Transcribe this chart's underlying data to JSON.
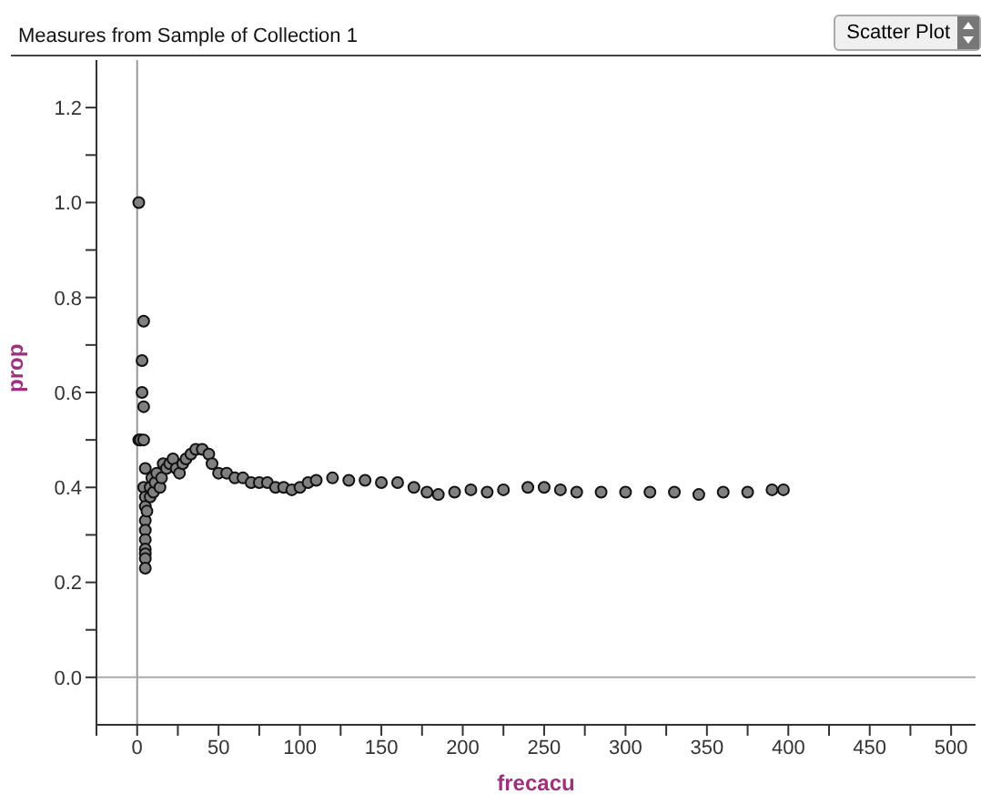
{
  "chart_data": {
    "type": "scatter",
    "title": "Measures from Sample of Collection 1",
    "xlabel": "frecacu",
    "ylabel": "prop",
    "annotations": [
      "Scatter Plot"
    ],
    "x": [
      1,
      1,
      2,
      3,
      4,
      3,
      4,
      2,
      4,
      5,
      4,
      5,
      5,
      5,
      5,
      5,
      5,
      5,
      5,
      5,
      6,
      8,
      9,
      8,
      10,
      11,
      12,
      14,
      15,
      16,
      18,
      20,
      22,
      24,
      26,
      28,
      30,
      33,
      36,
      40,
      44,
      46,
      50,
      55,
      60,
      65,
      70,
      75,
      80,
      85,
      90,
      95,
      100,
      105,
      110,
      120,
      130,
      140,
      150,
      160,
      170,
      178,
      185,
      195,
      205,
      215,
      225,
      240,
      250,
      260,
      270,
      285,
      300,
      315,
      330,
      345,
      360,
      375,
      390,
      397
    ],
    "values": [
      1.0,
      0.5,
      0.5,
      0.667,
      0.75,
      0.6,
      0.57,
      0.5,
      0.5,
      0.44,
      0.4,
      0.38,
      0.36,
      0.33,
      0.31,
      0.29,
      0.27,
      0.26,
      0.25,
      0.23,
      0.35,
      0.4,
      0.42,
      0.38,
      0.39,
      0.41,
      0.43,
      0.4,
      0.42,
      0.45,
      0.44,
      0.45,
      0.46,
      0.44,
      0.43,
      0.45,
      0.46,
      0.47,
      0.48,
      0.48,
      0.47,
      0.45,
      0.43,
      0.43,
      0.42,
      0.42,
      0.41,
      0.41,
      0.41,
      0.4,
      0.4,
      0.395,
      0.4,
      0.41,
      0.415,
      0.42,
      0.415,
      0.415,
      0.41,
      0.41,
      0.4,
      0.39,
      0.385,
      0.39,
      0.395,
      0.39,
      0.395,
      0.4,
      0.4,
      0.395,
      0.39,
      0.39,
      0.39,
      0.39,
      0.39,
      0.385,
      0.39,
      0.39,
      0.395,
      0.395
    ],
    "color": "#808080",
    "marker": "circle",
    "legend": false,
    "grid": false,
    "xlim": [
      -25,
      515
    ],
    "ylim": [
      -0.1,
      1.3
    ],
    "xticks": [
      {
        "value": -25,
        "label": null
      },
      0,
      {
        "value": 25,
        "label": null
      },
      50,
      {
        "value": 75,
        "label": null
      },
      100,
      {
        "value": 125,
        "label": null
      },
      150,
      {
        "value": 175,
        "label": null
      },
      200,
      {
        "value": 225,
        "label": null
      },
      250,
      {
        "value": 275,
        "label": null
      },
      300,
      {
        "value": 325,
        "label": null
      },
      350,
      {
        "value": 375,
        "label": null
      },
      400,
      {
        "value": 425,
        "label": null
      },
      450,
      {
        "value": 475,
        "label": null
      },
      500
    ],
    "yticks": [
      {
        "value": 0,
        "label": "0.0"
      },
      {
        "value": 0.1,
        "label": null
      },
      0.2,
      {
        "value": 0.3,
        "label": null
      },
      0.4,
      {
        "value": 0.5,
        "label": null
      },
      0.6,
      {
        "value": 0.7,
        "label": null
      },
      0.8,
      {
        "value": 0.9,
        "label": null
      },
      {
        "value": 1,
        "label": "1.0"
      },
      {
        "value": 1.1,
        "label": null
      },
      1.2
    ],
    "ref_lines": [
      {
        "axis": "x",
        "value": 0,
        "color": "#999999"
      },
      {
        "axis": "y",
        "value": 0,
        "color": "#aaaaaa"
      }
    ]
  }
}
